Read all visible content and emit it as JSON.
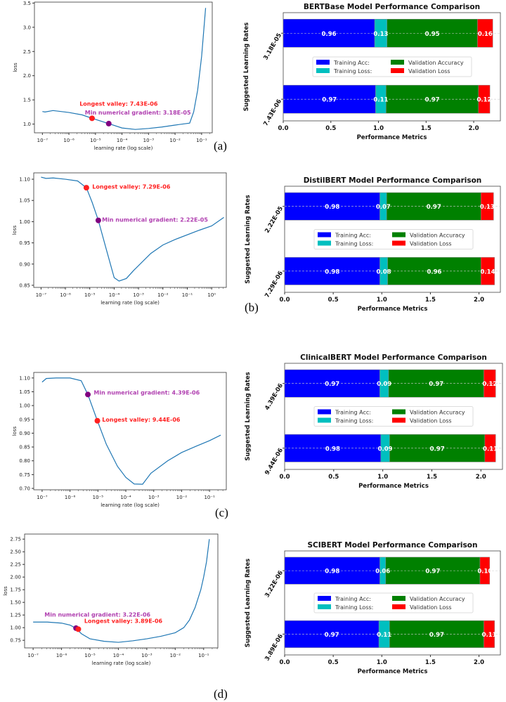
{
  "panel_labels": [
    "(a)",
    "(b)",
    "(c)",
    "(d)"
  ],
  "chart_data": [
    {
      "type": "line",
      "panel": "(a)",
      "xlabel": "learning rate (log scale)",
      "ylabel": "loss",
      "xscale": "log",
      "x_tick_labels": [
        "10⁻⁷",
        "10⁻⁶",
        "10⁻⁵",
        "10⁻⁴",
        "10⁻³",
        "10⁻²",
        "10⁻¹"
      ],
      "x_ticks_log10": [
        -7,
        -6,
        -5,
        -4,
        -3,
        -2,
        -1
      ],
      "xlim_log10": [
        -7.3,
        -0.6
      ],
      "ylim": [
        0.82,
        3.52
      ],
      "y_ticks": [
        1.0,
        1.5,
        2.0,
        2.5,
        3.0,
        3.5
      ],
      "y_tick_labels": [
        "1.0",
        "1.5",
        "2.0",
        "2.5",
        "3.0",
        "3.5"
      ],
      "series": [
        {
          "name": "loss",
          "color": "#1f77b4",
          "x_log10": [
            -7,
            -6.9,
            -6.6,
            -6,
            -5.5,
            -5.13,
            -4.5,
            -4,
            -3.5,
            -3,
            -2.5,
            -2,
            -1.45,
            -1.3,
            -1.15,
            -1.0,
            -0.85
          ],
          "y": [
            1.26,
            1.25,
            1.28,
            1.24,
            1.19,
            1.12,
            1.01,
            0.92,
            0.89,
            0.91,
            0.94,
            0.98,
            1.02,
            1.25,
            1.7,
            2.4,
            3.4
          ]
        }
      ],
      "markers": [
        {
          "label": "Longest valley: 7.43E-06",
          "x_log10": -5.13,
          "y": 1.12,
          "color": "#ff2020"
        },
        {
          "label": "Min numerical gradient: 3.18E-05",
          "x_log10": -4.5,
          "y": 1.01,
          "color": "#800080",
          "text_color": "#b040b0"
        }
      ]
    },
    {
      "type": "bar",
      "orientation": "horizontal",
      "stacked": true,
      "title": "BERTBase Model Performance Comparison",
      "xlabel": "Performance Metrics",
      "ylabel": "Suggested Learning Rates",
      "categories": [
        "3.18E-05",
        "7.43E-06"
      ],
      "xlim": [
        0,
        2.28
      ],
      "x_ticks": [
        0,
        0.5,
        1,
        1.5,
        2
      ],
      "x_tick_labels": [
        "0.0",
        "0.5",
        "1.0",
        "1.5",
        "2.0"
      ],
      "legend": "center",
      "series": [
        {
          "name": "Training Acc:",
          "color": "#0000ff",
          "values": [
            0.96,
            0.97
          ]
        },
        {
          "name": "Training Loss:",
          "color": "#00bfbf",
          "values": [
            0.13,
            0.11
          ]
        },
        {
          "name": "Validation Accuracy",
          "color": "#008000",
          "values": [
            0.95,
            0.97
          ]
        },
        {
          "name": "Validation Loss",
          "color": "#ff0000",
          "values": [
            0.16,
            0.12
          ]
        }
      ],
      "data_labels": [
        [
          "0.96",
          "0.13",
          "0.95",
          "0.16"
        ],
        [
          "0.97",
          "0.11",
          "0.97",
          "0.12"
        ]
      ]
    },
    {
      "type": "line",
      "panel": "(b)",
      "xlabel": "learning rate (log scale)",
      "ylabel": "loss",
      "xscale": "log",
      "x_tick_labels": [
        "10⁻⁷",
        "10⁻⁶",
        "10⁻⁵",
        "10⁻⁴",
        "10⁻³",
        "10⁻²",
        "10⁻¹",
        "10⁰"
      ],
      "x_ticks_log10": [
        -7,
        -6,
        -5,
        -4,
        -3,
        -2,
        -1,
        0
      ],
      "xlim_log10": [
        -7.3,
        0.6
      ],
      "ylim": [
        0.845,
        1.115
      ],
      "y_ticks": [
        0.85,
        0.9,
        0.95,
        1.0,
        1.05,
        1.1
      ],
      "y_tick_labels": [
        "0.85",
        "0.90",
        "0.95",
        "1.00",
        "1.05",
        "1.10"
      ],
      "series": [
        {
          "name": "loss",
          "color": "#1f77b4",
          "x_log10": [
            -7,
            -6.8,
            -6.5,
            -6,
            -5.5,
            -5.14,
            -4.9,
            -4.65,
            -4.3,
            -4,
            -3.8,
            -3.5,
            -3.2,
            -2.5,
            -2,
            -1.5,
            -0.5,
            0,
            0.5
          ],
          "y": [
            1.105,
            1.102,
            1.103,
            1.1,
            1.096,
            1.08,
            1.045,
            1.003,
            0.93,
            0.868,
            0.86,
            0.866,
            0.885,
            0.925,
            0.945,
            0.958,
            0.98,
            0.99,
            1.01
          ]
        }
      ],
      "markers": [
        {
          "label": "Longest valley: 7.29E-06",
          "x_log10": -5.14,
          "y": 1.08,
          "color": "#ff2020"
        },
        {
          "label": "Min numerical gradient: 2.22E-05",
          "x_log10": -4.65,
          "y": 1.003,
          "color": "#800080",
          "text_color": "#b040b0"
        }
      ]
    },
    {
      "type": "bar",
      "orientation": "horizontal",
      "stacked": true,
      "title": "DistilBERT Model Performance Comparison",
      "xlabel": "Performance Metrics",
      "ylabel": "Suggested Learning Rates",
      "categories": [
        "2.22E-05",
        "7.29E-06"
      ],
      "xlim": [
        0,
        2.22
      ],
      "x_ticks": [
        0,
        0.5,
        1,
        1.5,
        2
      ],
      "x_tick_labels": [
        "0.0",
        "0.5",
        "1.0",
        "1.5",
        "2.0"
      ],
      "legend": "center",
      "series": [
        {
          "name": "Training Acc:",
          "color": "#0000ff",
          "values": [
            0.98,
            0.98
          ]
        },
        {
          "name": "Training Loss:",
          "color": "#00bfbf",
          "values": [
            0.07,
            0.08
          ]
        },
        {
          "name": "Validation Accuracy",
          "color": "#008000",
          "values": [
            0.97,
            0.96
          ]
        },
        {
          "name": "Validation Loss",
          "color": "#ff0000",
          "values": [
            0.13,
            0.14
          ]
        }
      ],
      "data_labels": [
        [
          "0.98",
          "0.07",
          "0.97",
          "0.13"
        ],
        [
          "0.98",
          "0.08",
          "0.96",
          "0.14"
        ]
      ]
    },
    {
      "type": "line",
      "panel": "(c)",
      "xlabel": "learning rate (log scale)",
      "ylabel": "loss",
      "xscale": "log",
      "x_tick_labels": [
        "10⁻⁷",
        "10⁻⁶",
        "10⁻⁵",
        "10⁻⁴",
        "10⁻³",
        "10⁻²",
        "10⁻¹"
      ],
      "x_ticks_log10": [
        -7,
        -6,
        -5,
        -4,
        -3,
        -2,
        -1
      ],
      "xlim_log10": [
        -7.3,
        -0.4
      ],
      "ylim": [
        0.695,
        1.12
      ],
      "y_ticks": [
        0.7,
        0.75,
        0.8,
        0.85,
        0.9,
        0.95,
        1.0,
        1.05,
        1.1
      ],
      "y_tick_labels": [
        "0.70",
        "0.75",
        "0.80",
        "0.85",
        "0.90",
        "0.95",
        "1.00",
        "1.05",
        "1.10"
      ],
      "series": [
        {
          "name": "loss",
          "color": "#1f77b4",
          "x_log10": [
            -7,
            -6.85,
            -6.5,
            -6,
            -5.6,
            -5.36,
            -5.02,
            -4.7,
            -4.3,
            -4,
            -3.7,
            -3.4,
            -3.1,
            -2.5,
            -2,
            -1.5,
            -1,
            -0.6
          ],
          "y": [
            1.085,
            1.098,
            1.1,
            1.1,
            1.09,
            1.04,
            0.945,
            0.86,
            0.78,
            0.74,
            0.716,
            0.715,
            0.755,
            0.8,
            0.83,
            0.852,
            0.873,
            0.893
          ]
        }
      ],
      "markers": [
        {
          "label": "Min numerical gradient: 4.39E-06",
          "x_log10": -5.36,
          "y": 1.04,
          "color": "#800080",
          "text_color": "#b040b0"
        },
        {
          "label": "Longest valley: 9.44E-06",
          "x_log10": -5.02,
          "y": 0.945,
          "color": "#ff2020"
        }
      ]
    },
    {
      "type": "bar",
      "orientation": "horizontal",
      "stacked": true,
      "title": "ClinicalBERT Model Performance Comparison",
      "xlabel": "Performance Metrics",
      "ylabel": "Suggested Learning Rates",
      "categories": [
        "4.39E-06",
        "9.44E-06"
      ],
      "xlim": [
        0,
        2.22
      ],
      "x_ticks": [
        0,
        0.5,
        1,
        1.5,
        2
      ],
      "x_tick_labels": [
        "0.0",
        "0.5",
        "1.0",
        "1.5",
        "2.0"
      ],
      "legend": "center",
      "series": [
        {
          "name": "Training Acc:",
          "color": "#0000ff",
          "values": [
            0.97,
            0.98
          ]
        },
        {
          "name": "Training Loss:",
          "color": "#00bfbf",
          "values": [
            0.09,
            0.09
          ]
        },
        {
          "name": "Validation Accuracy",
          "color": "#008000",
          "values": [
            0.97,
            0.97
          ]
        },
        {
          "name": "Validation Loss",
          "color": "#ff0000",
          "values": [
            0.12,
            0.11
          ]
        }
      ],
      "data_labels": [
        [
          "0.97",
          "0.09",
          "0.97",
          "0.12"
        ],
        [
          "0.98",
          "0.09",
          "0.97",
          "0.11"
        ]
      ]
    },
    {
      "type": "line",
      "panel": "(d)",
      "xlabel": "learning rate (log scale)",
      "ylabel": "loss",
      "xscale": "log",
      "x_tick_labels": [
        "10⁻⁷",
        "10⁻⁶",
        "10⁻⁵",
        "10⁻⁴",
        "10⁻³",
        "10⁻²",
        "10⁻¹"
      ],
      "x_ticks_log10": [
        -7,
        -6,
        -5,
        -4,
        -3,
        -2,
        -1
      ],
      "xlim_log10": [
        -7.3,
        -0.5
      ],
      "ylim": [
        0.6,
        2.85
      ],
      "y_ticks": [
        0.75,
        1.0,
        1.25,
        1.5,
        1.75,
        2.0,
        2.25,
        2.5,
        2.75
      ],
      "y_tick_labels": [
        "0.75",
        "1.00",
        "1.25",
        "1.50",
        "1.75",
        "2.00",
        "2.25",
        "2.50",
        "2.75"
      ],
      "series": [
        {
          "name": "loss",
          "color": "#1f77b4",
          "x_log10": [
            -7,
            -6.5,
            -6,
            -5.7,
            -5.5,
            -5.3,
            -5,
            -4.5,
            -4,
            -3.5,
            -3,
            -2.5,
            -2,
            -1.7,
            -1.5,
            -1.3,
            -1.1,
            -1,
            -0.9,
            -0.8
          ],
          "y": [
            1.11,
            1.11,
            1.09,
            1.05,
            0.99,
            0.88,
            0.78,
            0.73,
            0.71,
            0.74,
            0.78,
            0.83,
            0.9,
            1.0,
            1.15,
            1.4,
            1.75,
            2.0,
            2.3,
            2.75
          ]
        }
      ],
      "markers": [
        {
          "label": "Min numerical gradient: 3.22E-06",
          "x_log10": -5.49,
          "y": 0.99,
          "color": "#800080",
          "text_color": "#b040b0"
        },
        {
          "label": "Longest valley: 3.89E-06",
          "x_log10": -5.41,
          "y": 0.97,
          "color": "#ff2020"
        }
      ]
    },
    {
      "type": "bar",
      "orientation": "horizontal",
      "stacked": true,
      "title": "SCIBERT Model Performance Comparison",
      "xlabel": "Performance Metrics",
      "ylabel": "Suggested Learning Rates",
      "categories": [
        "3.22E-06",
        "3.89E-06"
      ],
      "xlim": [
        0,
        2.22
      ],
      "x_ticks": [
        0,
        0.5,
        1,
        1.5,
        2
      ],
      "x_tick_labels": [
        "0.0",
        "0.5",
        "1.0",
        "1.5",
        "2.0"
      ],
      "legend": "center",
      "series": [
        {
          "name": "Training Acc:",
          "color": "#0000ff",
          "values": [
            0.98,
            0.97
          ]
        },
        {
          "name": "Training Loss:",
          "color": "#00bfbf",
          "values": [
            0.06,
            0.11
          ]
        },
        {
          "name": "Validation Accuracy",
          "color": "#008000",
          "values": [
            0.97,
            0.97
          ]
        },
        {
          "name": "Validation Loss",
          "color": "#ff0000",
          "values": [
            0.1,
            0.11
          ]
        }
      ],
      "data_labels": [
        [
          "0.98",
          "0.06",
          "0.97",
          "0.10"
        ],
        [
          "0.97",
          "0.11",
          "0.97",
          "0.11"
        ]
      ]
    }
  ]
}
